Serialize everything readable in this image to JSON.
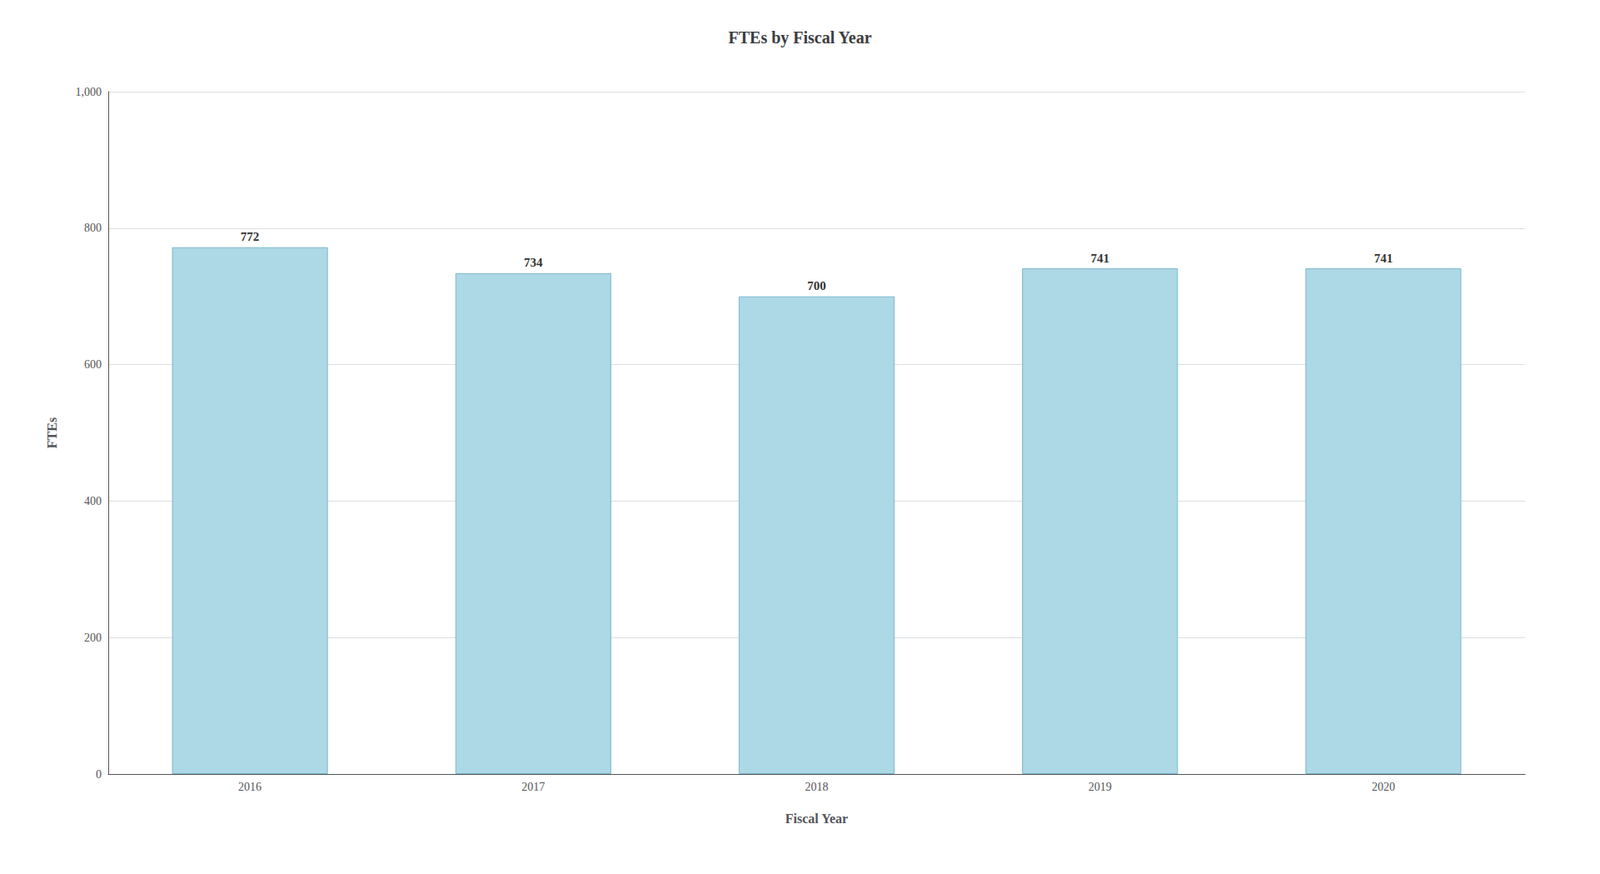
{
  "chart_data": {
    "type": "bar",
    "title": "FTEs by Fiscal Year",
    "xlabel": "Fiscal Year",
    "ylabel": "FTEs",
    "categories": [
      "2016",
      "2017",
      "2018",
      "2019",
      "2020"
    ],
    "values": [
      772,
      734,
      700,
      741,
      741
    ],
    "color": "#add8e6",
    "ylim": [
      0,
      1000
    ],
    "yticks": [
      0,
      200,
      400,
      600,
      800,
      {
        "value": 1000,
        "label": "1,000"
      }
    ],
    "grid": true,
    "data_labels": true
  }
}
